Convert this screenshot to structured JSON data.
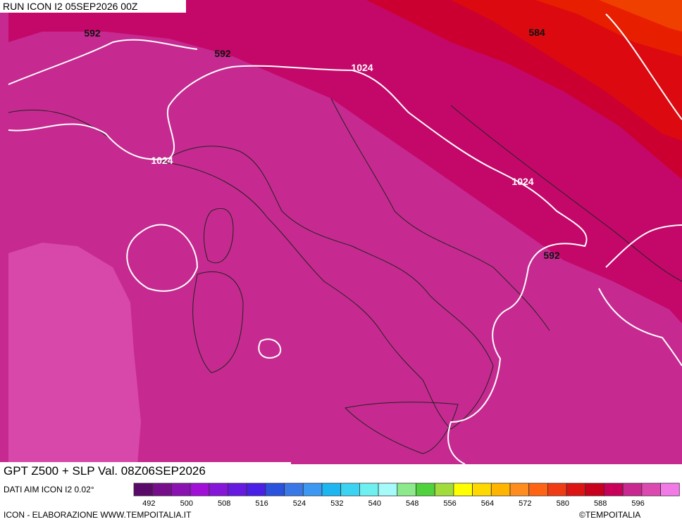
{
  "header": {
    "run": "RUN ICON I2 05SEP2026 00Z"
  },
  "footer": {
    "title": "GPT Z500 + SLP Val. 08Z06SEP2026",
    "source": "DATI AIM ICON I2 0.02°",
    "credit": "ICON - ELABORAZIONE WWW.TEMPOITALIA.IT",
    "copyright": "©TEMPOITALIA"
  },
  "contour_labels": [
    592,
    592,
    584,
    1024,
    1024,
    1024,
    592
  ],
  "colorbar": {
    "labels": [
      492,
      500,
      508,
      516,
      524,
      532,
      540,
      548,
      556,
      564,
      572,
      580,
      588,
      596
    ],
    "colors": [
      "#5a0a68",
      "#760e8c",
      "#8a12b0",
      "#a010d6",
      "#8616d8",
      "#661ae0",
      "#4a20e6",
      "#2a52dc",
      "#3a78e8",
      "#3c98f0",
      "#1eb6f0",
      "#3cd2f2",
      "#6ef0f0",
      "#a6fafa",
      "#8cea8c",
      "#4fd23c",
      "#a2dc3c",
      "#ffff00",
      "#ffd800",
      "#ffb400",
      "#ff8c1e",
      "#ff6414",
      "#f03c14",
      "#dc1414",
      "#c8001e",
      "#c8005a",
      "#c82890",
      "#dc4ab0",
      "#f27ae6"
    ]
  }
}
